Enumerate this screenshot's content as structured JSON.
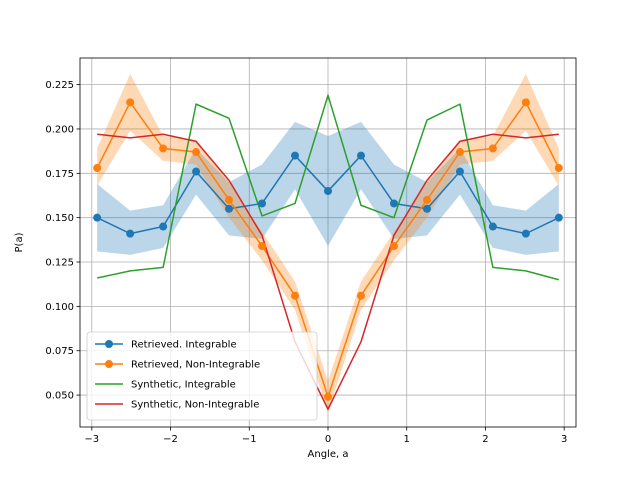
{
  "chart_data": {
    "type": "line",
    "title": "",
    "xlabel": "Angle, a",
    "ylabel": "P(a)",
    "xlim": [
      -3.15,
      3.15
    ],
    "ylim": [
      0.032,
      0.24
    ],
    "xticks": [
      -3,
      -2,
      -1,
      0,
      1,
      2,
      3
    ],
    "xtick_labels": [
      "−3",
      "−2",
      "−1",
      "0",
      "1",
      "2",
      "3"
    ],
    "yticks": [
      0.05,
      0.075,
      0.1,
      0.125,
      0.15,
      0.175,
      0.2,
      0.225
    ],
    "ytick_labels": [
      "0.050",
      "0.075",
      "0.100",
      "0.125",
      "0.150",
      "0.175",
      "0.200",
      "0.225"
    ],
    "grid": true,
    "legend_position": "lower-left",
    "series": [
      {
        "name": "Retrieved. Integrable",
        "color": "#1f77b4",
        "marker": true,
        "x": [
          -2.932,
          -2.513,
          -2.094,
          -1.676,
          -1.257,
          -0.838,
          -0.419,
          0.0,
          0.419,
          0.838,
          1.257,
          1.676,
          2.094,
          2.513,
          2.932
        ],
        "values": [
          0.15,
          0.141,
          0.145,
          0.176,
          0.155,
          0.158,
          0.185,
          0.165,
          0.185,
          0.158,
          0.155,
          0.176,
          0.145,
          0.141,
          0.15
        ],
        "band_lower": [
          0.131,
          0.129,
          0.133,
          0.163,
          0.14,
          0.138,
          0.166,
          0.134,
          0.166,
          0.138,
          0.14,
          0.163,
          0.133,
          0.129,
          0.131
        ],
        "band_upper": [
          0.169,
          0.154,
          0.157,
          0.189,
          0.17,
          0.18,
          0.204,
          0.196,
          0.204,
          0.18,
          0.17,
          0.189,
          0.157,
          0.154,
          0.169
        ]
      },
      {
        "name": "Retrieved, Non-Integrable",
        "color": "#ff7f0e",
        "marker": true,
        "x": [
          -2.932,
          -2.513,
          -2.094,
          -1.676,
          -1.257,
          -0.838,
          -0.419,
          0.0,
          0.419,
          0.838,
          1.257,
          1.676,
          2.094,
          2.513,
          2.932
        ],
        "values": [
          0.178,
          0.215,
          0.189,
          0.187,
          0.16,
          0.134,
          0.106,
          0.049,
          0.106,
          0.134,
          0.16,
          0.187,
          0.189,
          0.215,
          0.178
        ],
        "band_lower": [
          0.168,
          0.199,
          0.182,
          0.18,
          0.15,
          0.126,
          0.098,
          0.04,
          0.098,
          0.126,
          0.15,
          0.18,
          0.182,
          0.199,
          0.168
        ],
        "band_upper": [
          0.189,
          0.231,
          0.196,
          0.194,
          0.17,
          0.142,
          0.114,
          0.058,
          0.114,
          0.142,
          0.17,
          0.194,
          0.196,
          0.231,
          0.189
        ]
      },
      {
        "name": "Synthetic, Integrable",
        "color": "#2ca02c",
        "marker": false,
        "x": [
          -2.932,
          -2.513,
          -2.094,
          -1.676,
          -1.257,
          -0.838,
          -0.419,
          0.0,
          0.419,
          0.838,
          1.257,
          1.676,
          2.094,
          2.513,
          2.932
        ],
        "values": [
          0.116,
          0.12,
          0.122,
          0.214,
          0.206,
          0.151,
          0.158,
          0.219,
          0.157,
          0.15,
          0.205,
          0.214,
          0.122,
          0.12,
          0.115
        ]
      },
      {
        "name": "Synthetic, Non-Integrable",
        "color": "#d62728",
        "marker": false,
        "x": [
          -2.932,
          -2.513,
          -2.094,
          -1.676,
          -1.257,
          -0.838,
          -0.419,
          0.0,
          0.419,
          0.838,
          1.257,
          1.676,
          2.094,
          2.513,
          2.932
        ],
        "values": [
          0.197,
          0.195,
          0.197,
          0.193,
          0.171,
          0.14,
          0.08,
          0.042,
          0.08,
          0.14,
          0.171,
          0.193,
          0.197,
          0.195,
          0.197
        ]
      }
    ]
  }
}
